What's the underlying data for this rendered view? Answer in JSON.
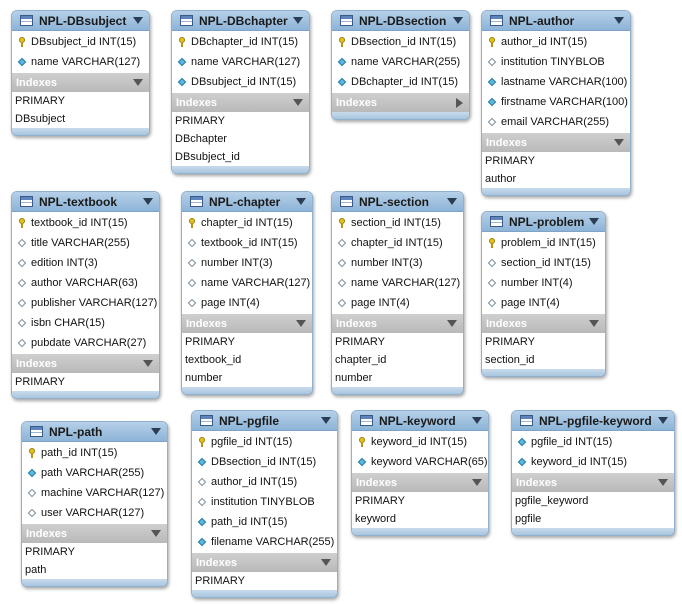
{
  "tables": [
    {
      "id": "dbsubject",
      "name": "NPL-DBsubject",
      "columns": [
        {
          "key": "pk",
          "text": "DBsubject_id INT(15)"
        },
        {
          "key": "blue",
          "text": "name VARCHAR(127)"
        }
      ],
      "indexes_label": "Indexes",
      "indexes_expanded": true,
      "indexes": [
        "PRIMARY",
        "DBsubject"
      ]
    },
    {
      "id": "dbchapter",
      "name": "NPL-DBchapter",
      "columns": [
        {
          "key": "pk",
          "text": "DBchapter_id INT(15)"
        },
        {
          "key": "blue",
          "text": "name VARCHAR(127)"
        },
        {
          "key": "blue",
          "text": "DBsubject_id INT(15)"
        }
      ],
      "indexes_label": "Indexes",
      "indexes_expanded": true,
      "indexes": [
        "PRIMARY",
        "DBchapter",
        "DBsubject_id"
      ]
    },
    {
      "id": "dbsection",
      "name": "NPL-DBsection",
      "columns": [
        {
          "key": "pk",
          "text": "DBsection_id INT(15)"
        },
        {
          "key": "blue",
          "text": "name VARCHAR(255)"
        },
        {
          "key": "blue",
          "text": "DBchapter_id INT(15)"
        }
      ],
      "indexes_label": "Indexes",
      "indexes_expanded": false,
      "indexes": []
    },
    {
      "id": "author",
      "name": "NPL-author",
      "columns": [
        {
          "key": "pk",
          "text": "author_id INT(15)"
        },
        {
          "key": "empty",
          "text": "institution TINYBLOB"
        },
        {
          "key": "blue",
          "text": "lastname VARCHAR(100)"
        },
        {
          "key": "blue",
          "text": "firstname VARCHAR(100)"
        },
        {
          "key": "empty",
          "text": "email VARCHAR(255)"
        }
      ],
      "indexes_label": "Indexes",
      "indexes_expanded": true,
      "indexes": [
        "PRIMARY",
        "author"
      ]
    },
    {
      "id": "textbook",
      "name": "NPL-textbook",
      "columns": [
        {
          "key": "pk",
          "text": "textbook_id INT(15)"
        },
        {
          "key": "empty",
          "text": "title VARCHAR(255)"
        },
        {
          "key": "empty",
          "text": "edition INT(3)"
        },
        {
          "key": "empty",
          "text": "author VARCHAR(63)"
        },
        {
          "key": "empty",
          "text": "publisher VARCHAR(127)"
        },
        {
          "key": "empty",
          "text": "isbn CHAR(15)"
        },
        {
          "key": "empty",
          "text": "pubdate VARCHAR(27)"
        }
      ],
      "indexes_label": "Indexes",
      "indexes_expanded": true,
      "indexes": [
        "PRIMARY"
      ]
    },
    {
      "id": "chapter",
      "name": "NPL-chapter",
      "columns": [
        {
          "key": "pk",
          "text": "chapter_id INT(15)"
        },
        {
          "key": "empty",
          "text": "textbook_id INT(15)"
        },
        {
          "key": "empty",
          "text": "number INT(3)"
        },
        {
          "key": "empty",
          "text": "name VARCHAR(127)"
        },
        {
          "key": "empty",
          "text": "page INT(4)"
        }
      ],
      "indexes_label": "Indexes",
      "indexes_expanded": true,
      "indexes": [
        "PRIMARY",
        "textbook_id",
        "number"
      ]
    },
    {
      "id": "section",
      "name": "NPL-section",
      "columns": [
        {
          "key": "pk",
          "text": "section_id INT(15)"
        },
        {
          "key": "empty",
          "text": "chapter_id INT(15)"
        },
        {
          "key": "empty",
          "text": "number INT(3)"
        },
        {
          "key": "empty",
          "text": "name VARCHAR(127)"
        },
        {
          "key": "empty",
          "text": "page INT(4)"
        }
      ],
      "indexes_label": "Indexes",
      "indexes_expanded": true,
      "indexes": [
        "PRIMARY",
        "chapter_id",
        "number"
      ]
    },
    {
      "id": "problem",
      "name": "NPL-problem",
      "columns": [
        {
          "key": "pk",
          "text": "problem_id INT(15)"
        },
        {
          "key": "empty",
          "text": "section_id INT(15)"
        },
        {
          "key": "empty",
          "text": "number INT(4)"
        },
        {
          "key": "empty",
          "text": "page INT(4)"
        }
      ],
      "indexes_label": "Indexes",
      "indexes_expanded": true,
      "indexes": [
        "PRIMARY",
        "section_id"
      ]
    },
    {
      "id": "path",
      "name": "NPL-path",
      "columns": [
        {
          "key": "pk",
          "text": "path_id INT(15)"
        },
        {
          "key": "blue",
          "text": "path VARCHAR(255)"
        },
        {
          "key": "empty",
          "text": "machine VARCHAR(127)"
        },
        {
          "key": "empty",
          "text": "user VARCHAR(127)"
        }
      ],
      "indexes_label": "Indexes",
      "indexes_expanded": true,
      "indexes": [
        "PRIMARY",
        "path"
      ]
    },
    {
      "id": "pgfile",
      "name": "NPL-pgfile",
      "columns": [
        {
          "key": "pk",
          "text": "pgfile_id INT(15)"
        },
        {
          "key": "blue",
          "text": "DBsection_id INT(15)"
        },
        {
          "key": "empty",
          "text": "author_id INT(15)"
        },
        {
          "key": "empty",
          "text": "institution TINYBLOB"
        },
        {
          "key": "blue",
          "text": "path_id INT(15)"
        },
        {
          "key": "blue",
          "text": "filename VARCHAR(255)"
        }
      ],
      "indexes_label": "Indexes",
      "indexes_expanded": true,
      "indexes": [
        "PRIMARY"
      ]
    },
    {
      "id": "keyword",
      "name": "NPL-keyword",
      "columns": [
        {
          "key": "pk",
          "text": "keyword_id INT(15)"
        },
        {
          "key": "blue",
          "text": "keyword VARCHAR(65)"
        }
      ],
      "indexes_label": "Indexes",
      "indexes_expanded": true,
      "indexes": [
        "PRIMARY",
        "keyword"
      ]
    },
    {
      "id": "pgfile-keyword",
      "name": "NPL-pgfile-keyword",
      "columns": [
        {
          "key": "blue",
          "text": "pgfile_id INT(15)"
        },
        {
          "key": "blue",
          "text": "keyword_id INT(15)"
        }
      ],
      "indexes_label": "Indexes",
      "indexes_expanded": true,
      "indexes": [
        "pgfile_keyword",
        "pgfile"
      ]
    }
  ]
}
